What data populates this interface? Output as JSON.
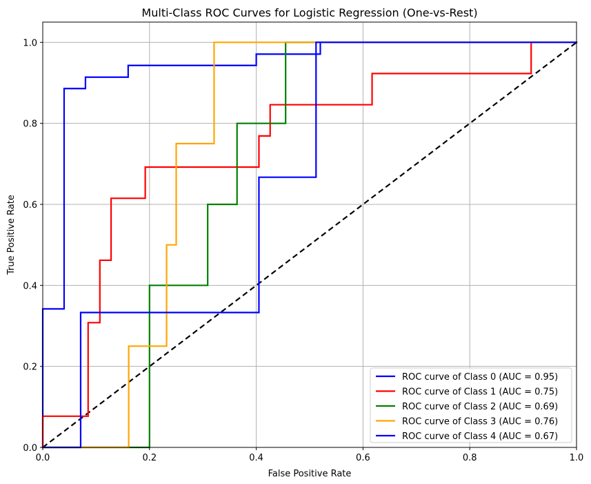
{
  "chart_data": {
    "type": "line",
    "title": "Multi-Class ROC Curves for Logistic Regression (One-vs-Rest)",
    "xlabel": "False Positive Rate",
    "ylabel": "True Positive Rate",
    "xlim": [
      0,
      1.0
    ],
    "ylim": [
      0,
      1.05
    ],
    "x_ticks": [
      0.0,
      0.2,
      0.4,
      0.6,
      0.8,
      1.0
    ],
    "y_ticks": [
      0.0,
      0.2,
      0.4,
      0.6,
      0.8,
      1.0
    ],
    "x_tick_labels": [
      "0.0",
      "0.2",
      "0.4",
      "0.6",
      "0.8",
      "1.0"
    ],
    "y_tick_labels": [
      "0.0",
      "0.2",
      "0.4",
      "0.6",
      "0.8",
      "1.0"
    ],
    "grid": true,
    "legend_position": "lower-right",
    "diagonal": {
      "style": "dashed",
      "color": "#000000",
      "points": [
        [
          0,
          0
        ],
        [
          1,
          1
        ]
      ]
    },
    "series": [
      {
        "name": "ROC curve of Class 0 (AUC = 0.95)",
        "color": "#0000ff",
        "points": [
          [
            0,
            0
          ],
          [
            0,
            0.342
          ],
          [
            0.04,
            0.342
          ],
          [
            0.04,
            0.886
          ],
          [
            0.08,
            0.886
          ],
          [
            0.08,
            0.914
          ],
          [
            0.16,
            0.914
          ],
          [
            0.16,
            0.943
          ],
          [
            0.4,
            0.943
          ],
          [
            0.4,
            0.971
          ],
          [
            0.52,
            0.971
          ],
          [
            0.52,
            1.0
          ],
          [
            1.0,
            1.0
          ]
        ]
      },
      {
        "name": "ROC curve of Class 1 (AUC = 0.75)",
        "color": "#ff0000",
        "points": [
          [
            0,
            0
          ],
          [
            0,
            0.077
          ],
          [
            0.085,
            0.077
          ],
          [
            0.085,
            0.308
          ],
          [
            0.107,
            0.308
          ],
          [
            0.107,
            0.462
          ],
          [
            0.128,
            0.462
          ],
          [
            0.128,
            0.615
          ],
          [
            0.192,
            0.615
          ],
          [
            0.192,
            0.692
          ],
          [
            0.405,
            0.692
          ],
          [
            0.405,
            0.769
          ],
          [
            0.426,
            0.769
          ],
          [
            0.426,
            0.846
          ],
          [
            0.617,
            0.846
          ],
          [
            0.617,
            0.923
          ],
          [
            0.915,
            0.923
          ],
          [
            0.915,
            1.0
          ],
          [
            1.0,
            1.0
          ]
        ]
      },
      {
        "name": "ROC curve of Class 2 (AUC = 0.69)",
        "color": "#008000",
        "points": [
          [
            0,
            0
          ],
          [
            0.2,
            0
          ],
          [
            0.2,
            0.4
          ],
          [
            0.309,
            0.4
          ],
          [
            0.309,
            0.6
          ],
          [
            0.364,
            0.6
          ],
          [
            0.364,
            0.8
          ],
          [
            0.455,
            0.8
          ],
          [
            0.455,
            1.0
          ],
          [
            1.0,
            1.0
          ]
        ]
      },
      {
        "name": "ROC curve of Class 3 (AUC = 0.76)",
        "color": "#ffa500",
        "points": [
          [
            0,
            0
          ],
          [
            0.161,
            0
          ],
          [
            0.161,
            0.25
          ],
          [
            0.232,
            0.25
          ],
          [
            0.232,
            0.5
          ],
          [
            0.25,
            0.5
          ],
          [
            0.25,
            0.75
          ],
          [
            0.321,
            0.75
          ],
          [
            0.321,
            1.0
          ],
          [
            1.0,
            1.0
          ]
        ]
      },
      {
        "name": "ROC curve of Class 4 (AUC = 0.67)",
        "color": "#0000ff",
        "points": [
          [
            0,
            0
          ],
          [
            0.071,
            0
          ],
          [
            0.071,
            0.333
          ],
          [
            0.405,
            0.333
          ],
          [
            0.405,
            0.667
          ],
          [
            0.512,
            0.667
          ],
          [
            0.512,
            1.0
          ],
          [
            1.0,
            1.0
          ]
        ]
      }
    ]
  }
}
